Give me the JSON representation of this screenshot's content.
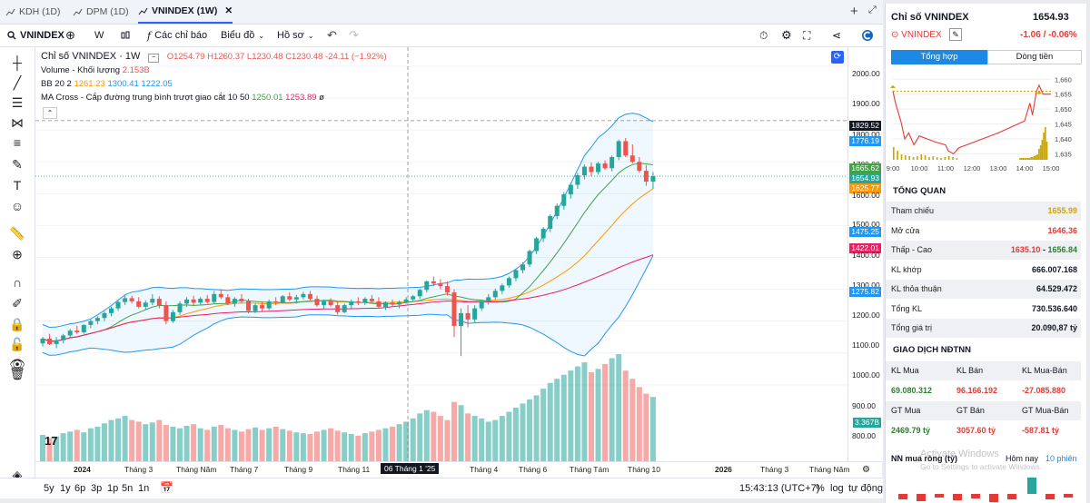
{
  "tabs": [
    {
      "label": "KDH (1D)"
    },
    {
      "label": "DPM (1D)"
    },
    {
      "label": "VNINDEX (1W)"
    }
  ],
  "toolbar": {
    "symbol": "VNINDEX",
    "interval": "W",
    "indicators": "Các chỉ báo",
    "chart_type": "Biểu đồ",
    "profile": "Hồ sơ"
  },
  "legend": {
    "title": "Chỉ số VNINDEX · 1W",
    "open": "O1254.79",
    "high": "H1260.37",
    "low": "L1230.48",
    "close": "C1230.48",
    "change": "-24.11 (−1.92%)",
    "volume_label": "Volume - Khối lượng",
    "volume_value": "2.153B",
    "bb_label": "BB 20 2",
    "bb_mid": "1261.23",
    "bb_up": "1300.41",
    "bb_low": "1222.05",
    "ma_label": "MA Cross - Cắp đường trung bình trượt giao cắt 10 50",
    "ma_fast": "1250.01",
    "ma_slow": "1253.89",
    "ma_tail": "ø"
  },
  "price_axis": {
    "labels": [
      "2000.00",
      "1900.00",
      "1829.52",
      "1800.00",
      "1776.19",
      "1700.00",
      "1665.62",
      "1654.93",
      "1625.77",
      "1600.00",
      "1500.00",
      "1475.25",
      "1422.01",
      "1400.00",
      "1300.00",
      "1275.82",
      "1200.00",
      "1100.00",
      "1000.00",
      "900.00",
      "800.00",
      "3.367B"
    ]
  },
  "time_axis": {
    "labels": [
      "2024",
      "Tháng 3",
      "Tháng Năm",
      "Tháng 7",
      "Tháng 9",
      "Tháng 11",
      "06 Tháng 1 '25",
      "Tháng 4",
      "Tháng 6",
      "Tháng Tám",
      "Tháng 10",
      "2026",
      "Tháng 3",
      "Tháng Năm"
    ]
  },
  "bottom": {
    "ranges": [
      "5y",
      "1y",
      "6p",
      "3p",
      "1p",
      "5n",
      "1n"
    ],
    "time": "15:43:13 (UTC+7)",
    "pct": "%",
    "log": "log",
    "auto": "tự động"
  },
  "panel": {
    "title": "Chỉ số VNINDEX",
    "price": "1654.93",
    "symbol": "VNINDEX",
    "change": "-1.06 / -0.06%",
    "tab_summary": "Tổng hợp",
    "tab_flow": "Dòng tiền",
    "mini_y": [
      "1,660",
      "1,655",
      "1,650",
      "1,645",
      "1,640",
      "1,635"
    ],
    "mini_x": [
      "9:00",
      "10:00",
      "11:00",
      "12:00",
      "13:00",
      "14:00",
      "15:00"
    ],
    "overview_title": "TỔNG QUAN",
    "rows": [
      {
        "k": "Tham chiếu",
        "v": "1655.99",
        "c": "#d4a400"
      },
      {
        "k": "Mở cửa",
        "v": "1646.36",
        "c": "#e53935"
      },
      {
        "k": "Thấp - Cao",
        "v_low": "1635.10",
        "v_sep": " - ",
        "v_high": "1656.84"
      },
      {
        "k": "KL khớp",
        "v": "666.007.168",
        "c": "#131722"
      },
      {
        "k": "KL thỏa thuận",
        "v": "64.529.472",
        "c": "#131722"
      },
      {
        "k": "Tổng KL",
        "v": "730.536.640",
        "c": "#131722"
      },
      {
        "k": "Tổng giá trị",
        "v": "20.090,87 tỷ",
        "c": "#131722"
      }
    ],
    "foreign_title": "GIAO DỊCH NĐTNN",
    "f_head1": [
      "KL Mua",
      "KL Bán",
      "KL Mua-Bán"
    ],
    "f_val1": [
      "69.080.312",
      "96.166.192",
      "-27.085.880"
    ],
    "f_head2": [
      "GT Mua",
      "GT Bán",
      "GT Mua-Bán"
    ],
    "f_val2": [
      "2469.79 tỷ",
      "3057.60 tỷ",
      "-587.81 tỷ"
    ],
    "nn_title": "NN mua ròng (tỷ)",
    "nn_today": "Hôm nay",
    "nn_10": "10 phiên",
    "watermark1": "Activate Windows",
    "watermark2": "Go to Settings to activate Windows."
  },
  "colors": {
    "up": "#26a69a",
    "down": "#ef5350",
    "accent": "#2962ff"
  },
  "chart_data": {
    "type": "candlestick",
    "price_range": [
      760,
      2060
    ],
    "candles": [
      [
        1130,
        1150,
        1120,
        1145
      ],
      [
        1145,
        1160,
        1125,
        1128
      ],
      [
        1128,
        1150,
        1115,
        1140
      ],
      [
        1140,
        1160,
        1130,
        1155
      ],
      [
        1155,
        1175,
        1148,
        1170
      ],
      [
        1170,
        1185,
        1160,
        1165
      ],
      [
        1165,
        1190,
        1160,
        1188
      ],
      [
        1188,
        1205,
        1178,
        1200
      ],
      [
        1200,
        1215,
        1190,
        1210
      ],
      [
        1210,
        1230,
        1200,
        1225
      ],
      [
        1225,
        1245,
        1215,
        1240
      ],
      [
        1240,
        1265,
        1232,
        1260
      ],
      [
        1260,
        1280,
        1250,
        1272
      ],
      [
        1272,
        1280,
        1255,
        1262
      ],
      [
        1262,
        1275,
        1240,
        1245
      ],
      [
        1245,
        1265,
        1235,
        1258
      ],
      [
        1258,
        1285,
        1250,
        1270
      ],
      [
        1270,
        1278,
        1240,
        1250
      ],
      [
        1250,
        1262,
        1190,
        1200
      ],
      [
        1200,
        1235,
        1195,
        1228
      ],
      [
        1228,
        1262,
        1220,
        1255
      ],
      [
        1255,
        1275,
        1245,
        1268
      ],
      [
        1268,
        1280,
        1250,
        1258
      ],
      [
        1258,
        1275,
        1250,
        1270
      ],
      [
        1270,
        1282,
        1255,
        1260
      ],
      [
        1260,
        1295,
        1255,
        1285
      ],
      [
        1285,
        1300,
        1270,
        1275
      ],
      [
        1275,
        1285,
        1250,
        1255
      ],
      [
        1255,
        1275,
        1245,
        1270
      ],
      [
        1270,
        1285,
        1255,
        1262
      ],
      [
        1262,
        1270,
        1225,
        1232
      ],
      [
        1232,
        1255,
        1225,
        1250
      ],
      [
        1250,
        1262,
        1230,
        1240
      ],
      [
        1240,
        1268,
        1235,
        1262
      ],
      [
        1262,
        1275,
        1250,
        1258
      ],
      [
        1258,
        1282,
        1255,
        1278
      ],
      [
        1278,
        1290,
        1262,
        1268
      ],
      [
        1268,
        1282,
        1255,
        1275
      ],
      [
        1275,
        1292,
        1268,
        1285
      ],
      [
        1285,
        1295,
        1265,
        1270
      ],
      [
        1270,
        1280,
        1245,
        1250
      ],
      [
        1250,
        1268,
        1240,
        1262
      ],
      [
        1262,
        1272,
        1245,
        1250
      ],
      [
        1250,
        1262,
        1220,
        1228
      ],
      [
        1228,
        1255,
        1225,
        1250
      ],
      [
        1250,
        1268,
        1240,
        1262
      ],
      [
        1262,
        1275,
        1250,
        1258
      ],
      [
        1258,
        1275,
        1250,
        1270
      ],
      [
        1270,
        1282,
        1258,
        1262
      ],
      [
        1262,
        1275,
        1240,
        1245
      ],
      [
        1245,
        1262,
        1235,
        1258
      ],
      [
        1258,
        1268,
        1245,
        1252
      ],
      [
        1252,
        1265,
        1240,
        1260
      ],
      [
        1260,
        1275,
        1255,
        1268
      ],
      [
        1268,
        1282,
        1262,
        1278
      ],
      [
        1278,
        1302,
        1270,
        1298
      ],
      [
        1298,
        1328,
        1290,
        1325
      ],
      [
        1325,
        1340,
        1310,
        1318
      ],
      [
        1318,
        1332,
        1300,
        1310
      ],
      [
        1310,
        1325,
        1280,
        1290
      ],
      [
        1290,
        1300,
        1150,
        1185
      ],
      [
        1185,
        1240,
        1090,
        1225
      ],
      [
        1225,
        1250,
        1180,
        1205
      ],
      [
        1205,
        1250,
        1195,
        1240
      ],
      [
        1240,
        1268,
        1232,
        1262
      ],
      [
        1262,
        1285,
        1252,
        1275
      ],
      [
        1275,
        1302,
        1268,
        1295
      ],
      [
        1295,
        1318,
        1285,
        1312
      ],
      [
        1312,
        1340,
        1305,
        1335
      ],
      [
        1335,
        1365,
        1325,
        1360
      ],
      [
        1360,
        1385,
        1350,
        1378
      ],
      [
        1378,
        1425,
        1370,
        1420
      ],
      [
        1420,
        1465,
        1410,
        1460
      ],
      [
        1460,
        1495,
        1448,
        1490
      ],
      [
        1490,
        1535,
        1480,
        1530
      ],
      [
        1530,
        1570,
        1520,
        1562
      ],
      [
        1562,
        1605,
        1550,
        1598
      ],
      [
        1598,
        1635,
        1585,
        1628
      ],
      [
        1628,
        1665,
        1615,
        1658
      ],
      [
        1658,
        1692,
        1645,
        1685
      ],
      [
        1685,
        1698,
        1655,
        1668
      ],
      [
        1668,
        1700,
        1660,
        1695
      ],
      [
        1695,
        1705,
        1675,
        1680
      ],
      [
        1680,
        1720,
        1670,
        1715
      ],
      [
        1715,
        1770,
        1705,
        1765
      ],
      [
        1765,
        1775,
        1715,
        1720
      ],
      [
        1720,
        1755,
        1695,
        1700
      ],
      [
        1700,
        1715,
        1665,
        1672
      ],
      [
        1672,
        1690,
        1625,
        1638
      ],
      [
        1638,
        1668,
        1615,
        1655
      ]
    ],
    "volume": [
      32,
      28,
      30,
      34,
      36,
      38,
      35,
      40,
      42,
      46,
      50,
      52,
      55,
      50,
      48,
      45,
      47,
      50,
      44,
      42,
      40,
      43,
      45,
      40,
      38,
      42,
      44,
      40,
      38,
      36,
      39,
      41,
      38,
      40,
      42,
      39,
      37,
      35,
      34,
      33,
      36,
      38,
      40,
      37,
      35,
      33,
      31,
      34,
      36,
      38,
      40,
      42,
      45,
      48,
      52,
      58,
      62,
      60,
      55,
      50,
      72,
      68,
      58,
      55,
      52,
      48,
      50,
      55,
      60,
      65,
      70,
      75,
      80,
      88,
      95,
      100,
      105,
      110,
      115,
      120,
      108,
      112,
      118,
      125,
      130,
      110,
      100,
      90,
      82,
      78
    ],
    "bb_upper_end": 1780,
    "bb_lower_end": 1480,
    "ma_fast_end": 1672,
    "ma_slow_end": 1422
  }
}
